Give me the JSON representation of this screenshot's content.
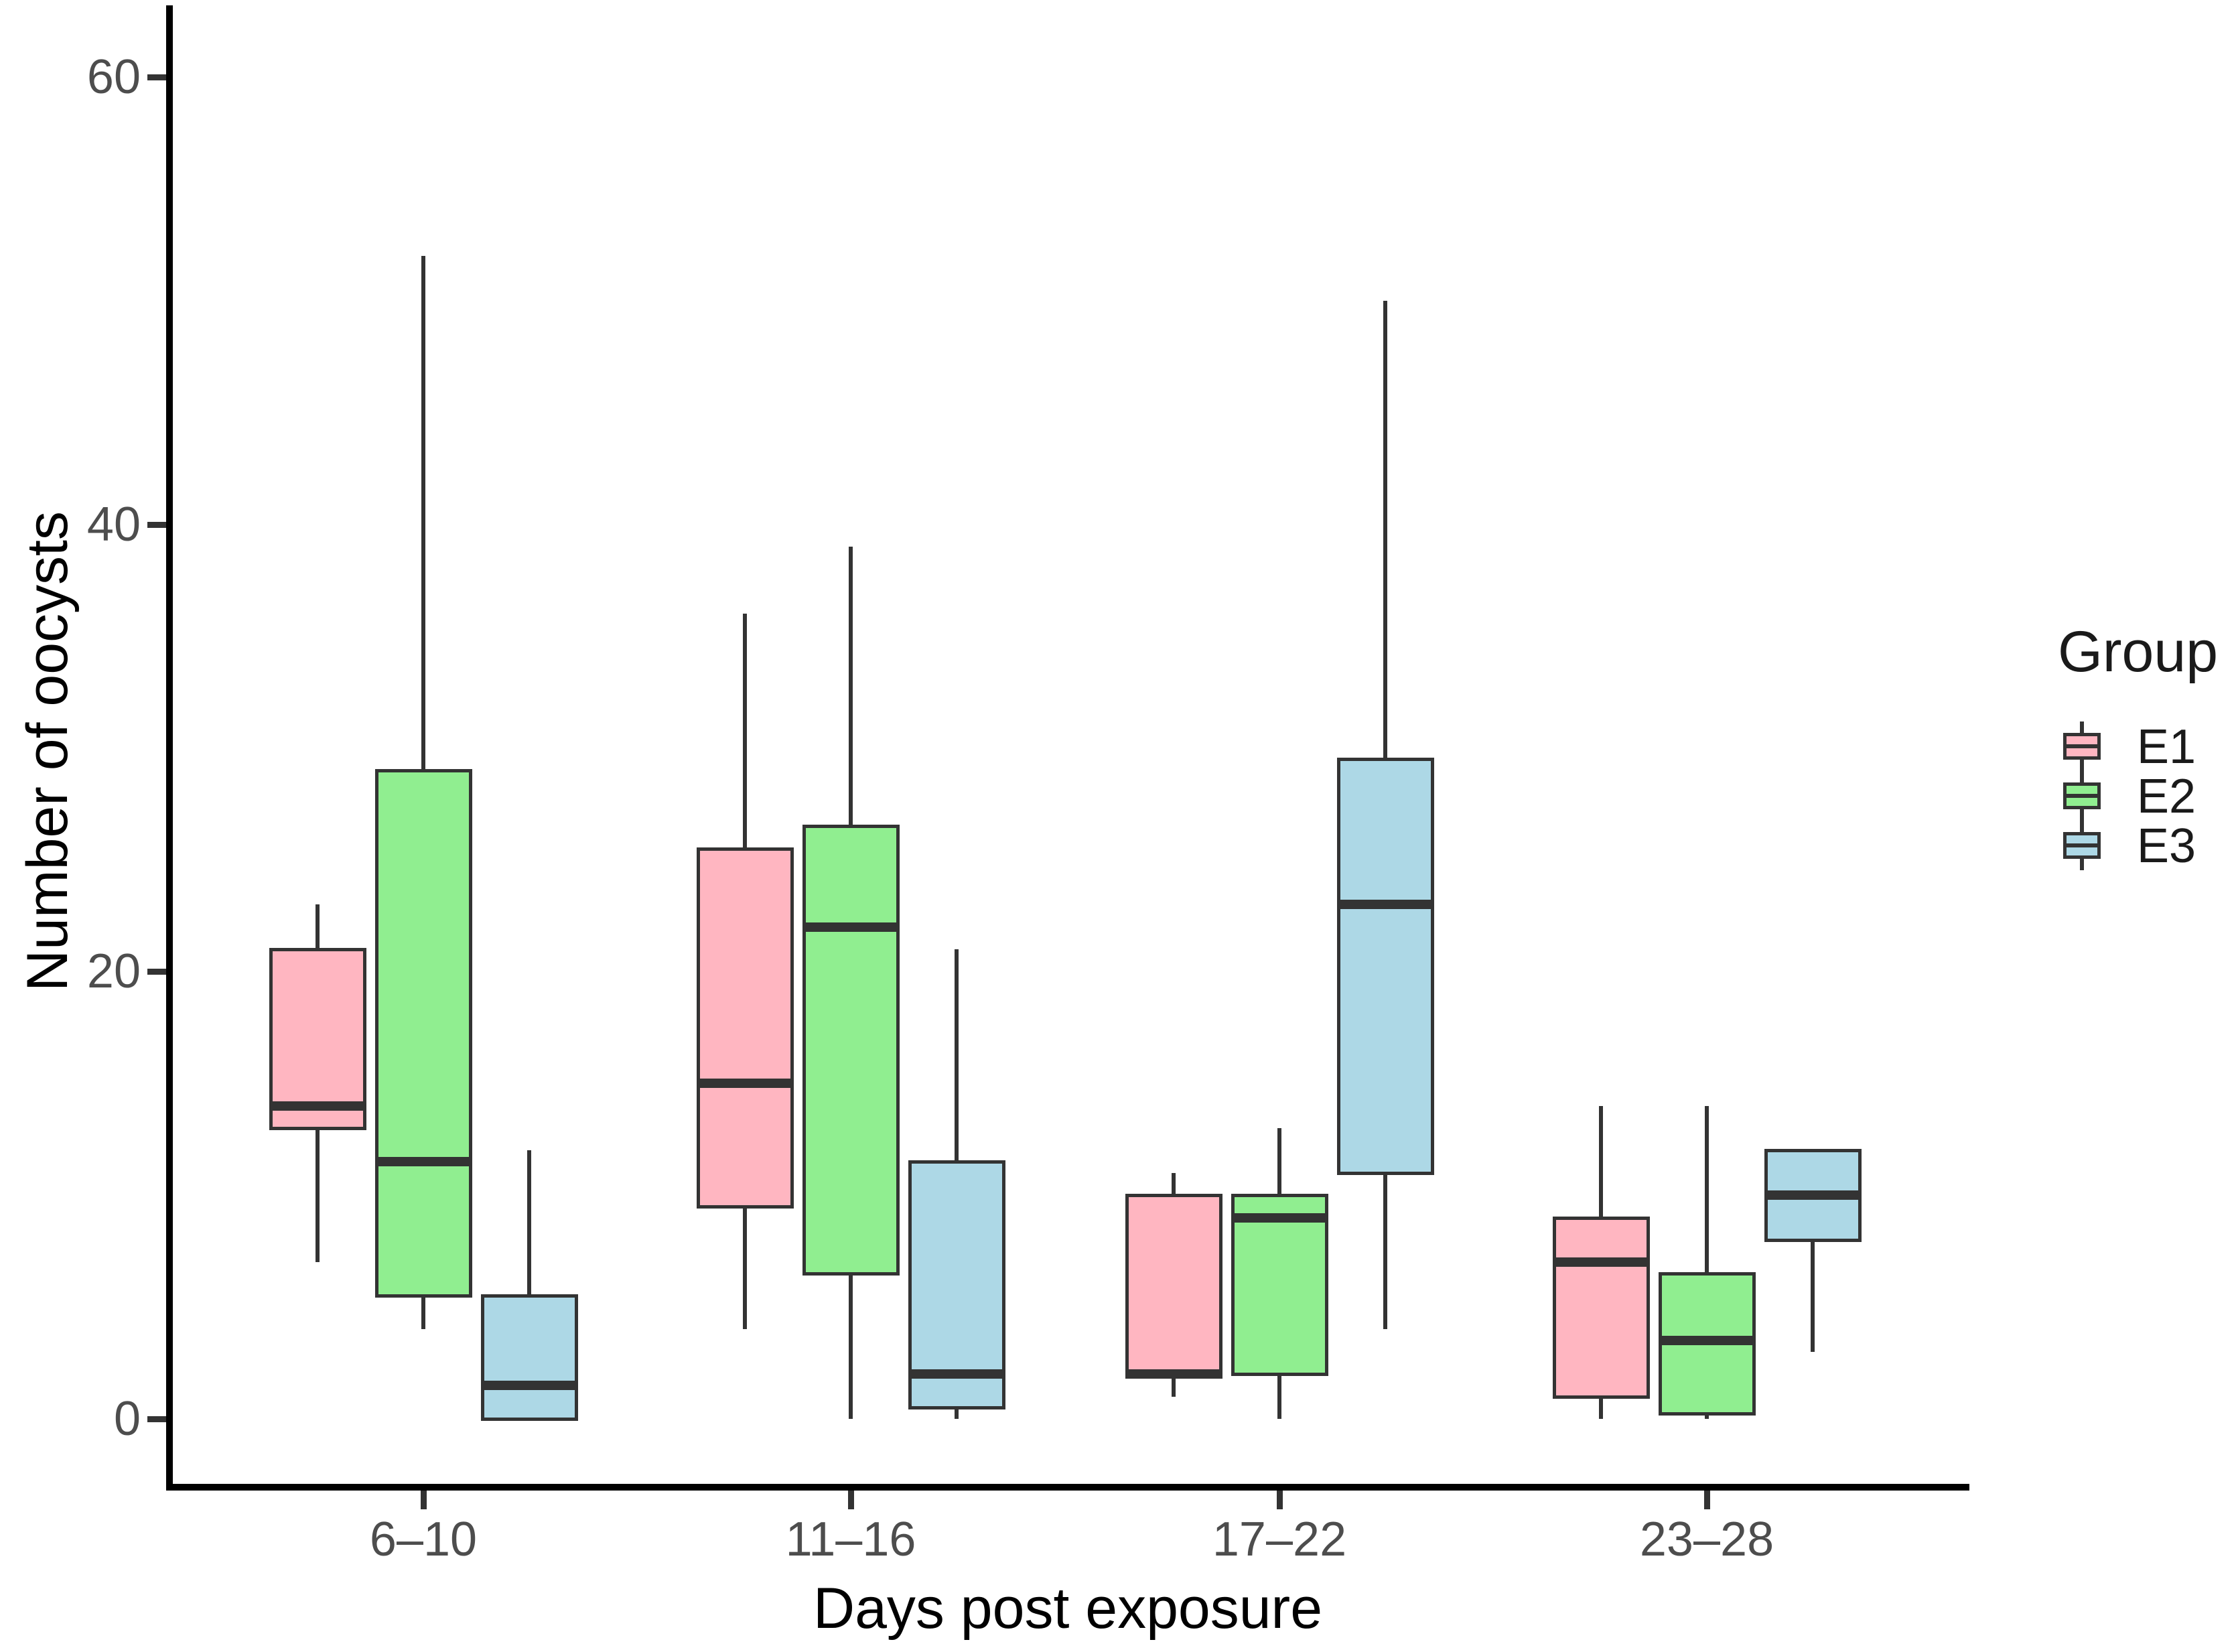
{
  "chart_data": {
    "type": "boxplot",
    "title": "",
    "xlabel": "Days post exposure",
    "ylabel": "Number of oocysts",
    "categories": [
      "6–10",
      "11–16",
      "17–22",
      "23–28"
    ],
    "y_ticks": [
      0,
      20,
      40,
      60
    ],
    "ylim": [
      -3,
      63
    ],
    "grid": false,
    "legend_position": "right",
    "legend_title": "Group",
    "series": [
      {
        "name": "E1",
        "color": "#FFB6C1",
        "five_number_summaries_min_q1_med_q3_max": [
          [
            7,
            13,
            14,
            21,
            23
          ],
          [
            4,
            9.5,
            15,
            25.5,
            36
          ],
          [
            1,
            2,
            2,
            10,
            11
          ],
          [
            0,
            1,
            7,
            9,
            14
          ]
        ]
      },
      {
        "name": "E2",
        "color": "#90EE90",
        "five_number_summaries_min_q1_med_q3_max": [
          [
            4,
            5.5,
            11.5,
            29,
            52
          ],
          [
            0,
            6.5,
            22,
            26.5,
            39
          ],
          [
            0,
            2,
            9,
            10,
            13
          ],
          [
            0,
            0.25,
            3.5,
            6.5,
            14
          ]
        ]
      },
      {
        "name": "E3",
        "color": "#ADD8E6",
        "five_number_summaries_min_q1_med_q3_max": [
          [
            0,
            0,
            1.5,
            5.5,
            12
          ],
          [
            0,
            0.5,
            2,
            11.5,
            21
          ],
          [
            4,
            11,
            23,
            29.5,
            50
          ],
          [
            3,
            8,
            10,
            12,
            12
          ]
        ]
      }
    ],
    "line_color": "#333333",
    "axis_color": "#000000",
    "tick_label_color": "#4d4d4d"
  }
}
